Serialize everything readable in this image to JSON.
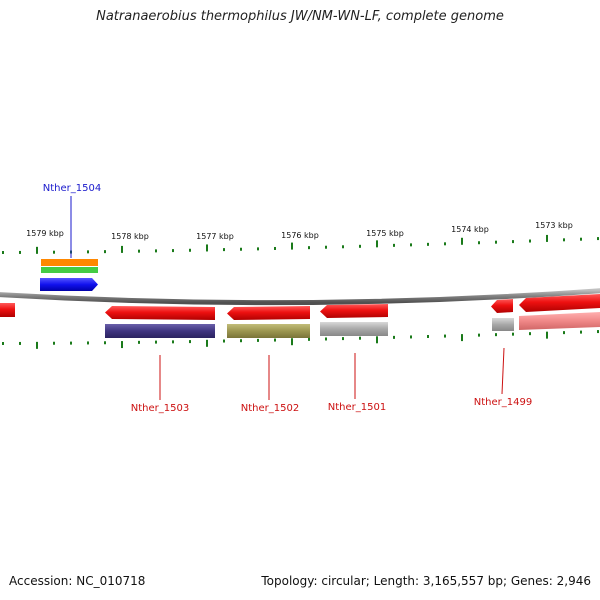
{
  "header": {
    "title": "Natranaerobius thermophilus JW/NM-WN-LF, complete genome"
  },
  "footer": {
    "accession": "Accession: NC_010718",
    "summary": "Topology: circular; Length: 3,165,557 bp; Genes: 2,946"
  },
  "colors": {
    "backbone": "#808080",
    "tick": "#1a7a1a",
    "forward_label": "#1a1acc",
    "reverse_label": "#cc1111",
    "cds": "#ee1111",
    "orange_feature": "#ff8800",
    "green_feature": "#44cc44",
    "blue_feature": "#1111ee",
    "navy_feature": "#4a3f8a",
    "olive_feature": "#9c9650",
    "grey_feature": "#a8a8a8",
    "pink_feature": "#f08888"
  },
  "scale": {
    "labels": [
      "1579 kbp",
      "1578 kbp",
      "1577 kbp",
      "1576 kbp",
      "1575 kbp",
      "1574 kbp",
      "1573 kbp"
    ]
  },
  "genes": {
    "forward": [
      "Nther_1504"
    ],
    "reverse": [
      "Nther_1503",
      "Nther_1502",
      "Nther_1501",
      "Nther_1499"
    ]
  }
}
